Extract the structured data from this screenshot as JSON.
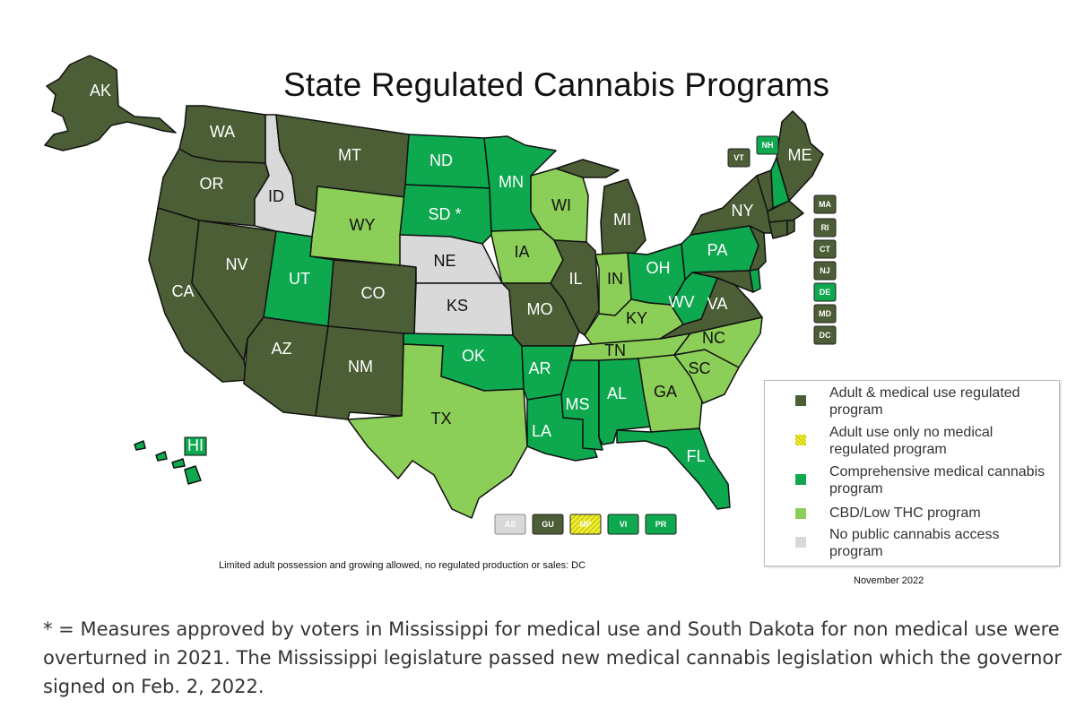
{
  "title": "State Regulated Cannabis Programs",
  "colors": {
    "adult_medical": "#4c5e35",
    "adult_only": "#f1ee2a",
    "comprehensive_medical": "#0ea84f",
    "cbd_low_thc": "#8ccf58",
    "no_access": "#d9d9d9"
  },
  "categories": {
    "adult_medical": [
      "AK",
      "WA",
      "OR",
      "CA",
      "NV",
      "AZ",
      "MT",
      "CO",
      "NM",
      "MI",
      "IL",
      "MO",
      "VA",
      "NY",
      "VT",
      "ME",
      "MA",
      "RI",
      "CT",
      "NJ",
      "MD",
      "DC",
      "GU"
    ],
    "adult_only": [
      "MP"
    ],
    "comprehensive_medical": [
      "HI",
      "UT",
      "ND",
      "SD",
      "MN",
      "OK",
      "AR",
      "LA",
      "MS",
      "AL",
      "FL",
      "OH",
      "WV",
      "PA",
      "NH",
      "DE",
      "VI",
      "PR"
    ],
    "cbd_low_thc": [
      "WY",
      "IA",
      "WI",
      "IN",
      "KY",
      "TN",
      "NC",
      "SC",
      "GA",
      "TX"
    ],
    "no_access": [
      "ID",
      "NE",
      "KS",
      "AS"
    ]
  },
  "states": {
    "AK": "AK",
    "WA": "WA",
    "OR": "OR",
    "CA": "CA",
    "NV": "NV",
    "ID": "ID",
    "MT": "MT",
    "WY": "WY",
    "UT": "UT",
    "AZ": "AZ",
    "CO": "CO",
    "NM": "NM",
    "ND": "ND",
    "SD": "SD *",
    "NE": "NE",
    "KS": "KS",
    "OK": "OK",
    "TX": "TX",
    "MN": "MN",
    "IA": "IA",
    "MO": "MO",
    "AR": "AR",
    "LA": "LA",
    "WI": "WI",
    "IL": "IL",
    "MI": "MI",
    "IN": "IN",
    "OH": "OH",
    "KY": "KY",
    "TN": "TN",
    "MS": "MS",
    "AL": "AL",
    "GA": "GA",
    "FL": "FL",
    "SC": "SC",
    "NC": "NC",
    "VA": "VA",
    "WV": "WV",
    "PA": "PA",
    "NY": "NY",
    "ME": "ME",
    "HI": "HI"
  },
  "small_boxes": {
    "VT": "VT",
    "NH": "NH",
    "MA": "MA",
    "RI": "RI",
    "CT": "CT",
    "NJ": "NJ",
    "DE": "DE",
    "MD": "MD",
    "DC": "DC"
  },
  "territories": {
    "AS": "AS",
    "GU": "GU",
    "MP": "MP",
    "VI": "VI",
    "PR": "PR"
  },
  "legend": [
    {
      "key": "adult_medical",
      "label": "Adult & medical use regulated program"
    },
    {
      "key": "adult_only",
      "label": "Adult use only no medical regulated program"
    },
    {
      "key": "comprehensive_medical",
      "label": "Comprehensive medical cannabis program"
    },
    {
      "key": "cbd_low_thc",
      "label": "CBD/Low THC program"
    },
    {
      "key": "no_access",
      "label": "No public cannabis access program"
    }
  ],
  "note": "Limited adult possession and growing allowed, no regulated production or sales: DC",
  "date": "November  2022",
  "footnote": "* = Measures approved by voters in Mississippi for medical use and South Dakota for non medical use were overturned in 2021. The Mississippi legislature passed new medical cannabis legislation which the governor signed on Feb. 2, 2022."
}
